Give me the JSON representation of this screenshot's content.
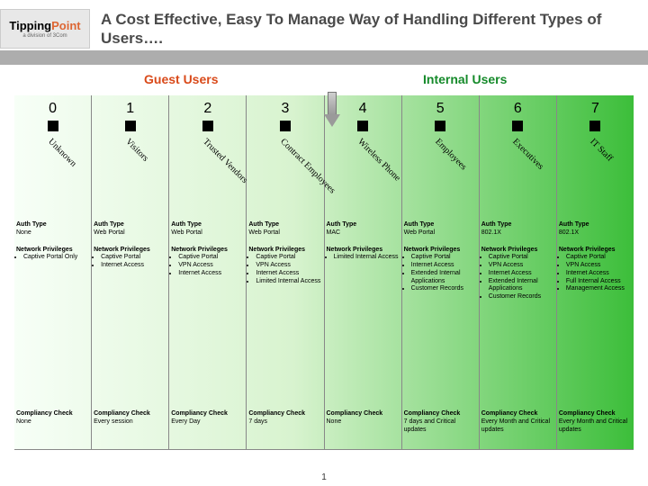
{
  "logo": {
    "main_a": "Tipping",
    "main_b": "Point",
    "sub": "a division of 3Com"
  },
  "title": "A Cost Effective, Easy To Manage Way of Handling Different Types of Users….",
  "categories": {
    "guest": "Guest Users",
    "internal": "Internal Users"
  },
  "category_colors": {
    "guest": "#d94a1a",
    "internal": "#158a2a"
  },
  "gradient": {
    "from": "#f7fff7",
    "mid": "#d8f3cf",
    "to": "#3cbe3a"
  },
  "section_labels": {
    "auth": "Auth Type",
    "priv": "Network Privileges",
    "comp": "Compliancy Check"
  },
  "columns": [
    {
      "num": "0",
      "label": "Unknown",
      "auth": "None",
      "priv": [
        "Captive Portal Only"
      ],
      "comp": "None"
    },
    {
      "num": "1",
      "label": "Visitors",
      "auth": "Web Portal",
      "priv": [
        "Captive Portal",
        "Internet Access"
      ],
      "comp": "Every session"
    },
    {
      "num": "2",
      "label": "Trusted Vendors",
      "auth": "Web Portal",
      "priv": [
        "Captive Portal",
        "VPN Access",
        "Internet Access"
      ],
      "comp": "Every Day"
    },
    {
      "num": "3",
      "label": "Contract Employees",
      "auth": "Web Portal",
      "priv": [
        "Captive Portal",
        "VPN Access",
        "Internet Access",
        "Limited Internal Access"
      ],
      "comp": "7 days"
    },
    {
      "num": "4",
      "label": "Wireless Phone",
      "auth": "MAC",
      "priv": [
        "Limited Internal Access"
      ],
      "comp": "None"
    },
    {
      "num": "5",
      "label": "Employees",
      "auth": "Web Portal",
      "priv": [
        "Captive Portal",
        "Internet Access",
        "Extended Internal Applications",
        "Customer Records"
      ],
      "comp": "7 days and Critical updates"
    },
    {
      "num": "6",
      "label": "Executives",
      "auth": "802.1X",
      "priv": [
        "Captive Portal",
        "VPN Access",
        "Internet Access",
        "Extended Internal Applications",
        "Customer Records"
      ],
      "comp": "Every Month and Critical updates"
    },
    {
      "num": "7",
      "label": "IT Staff",
      "auth": "802.1X",
      "priv": [
        "Captive Portal",
        "VPN Access",
        "Internet Access",
        "Full Internal Access",
        "Management Access"
      ],
      "comp": "Every Month and Critical updates"
    }
  ],
  "page_number": "1",
  "fonts": {
    "title_pt": 17,
    "category_pt": 14,
    "colnum_pt": 16,
    "collabel_pt": 10,
    "detail_pt": 7
  },
  "colors": {
    "title": "#4a4a4a",
    "gray_bar": "#adadad",
    "marker": "#000000",
    "grid": "#888888"
  }
}
